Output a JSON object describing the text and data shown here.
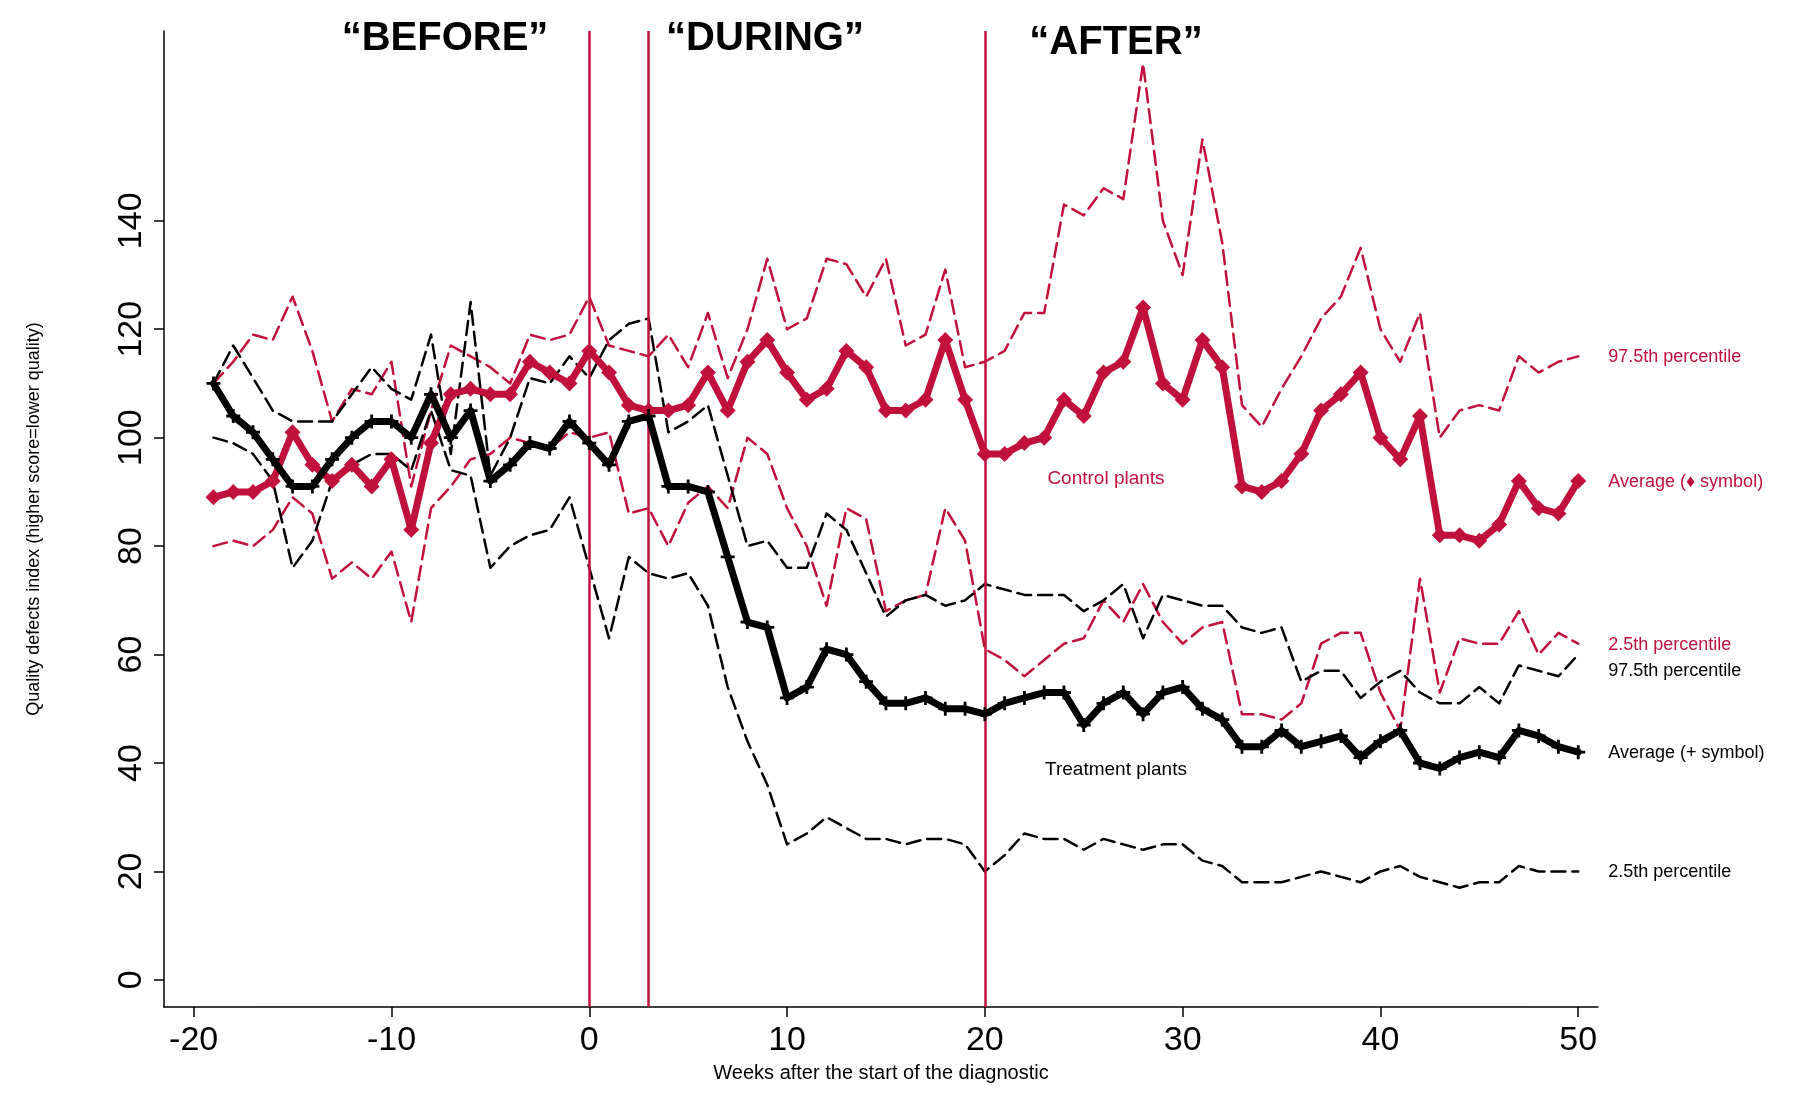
{
  "chart_data": {
    "type": "line",
    "xlabel": "Weeks after the start of the diagnostic",
    "ylabel": "Quality defects index (higher score=lower quality)",
    "xlim": [
      -21.5,
      51
    ],
    "xticks": [
      -20,
      -10,
      0,
      10,
      20,
      30,
      40,
      50
    ],
    "ylim": [
      -5,
      175
    ],
    "yticks": [
      0,
      20,
      40,
      60,
      80,
      100,
      120,
      140
    ],
    "grid": false,
    "legend": false,
    "x": [
      -19,
      -18,
      -17,
      -16,
      -15,
      -14,
      -13,
      -12,
      -11,
      -10,
      -9,
      -8,
      -7,
      -6,
      -5,
      -4,
      -3,
      -2,
      -1,
      0,
      1,
      2,
      3,
      4,
      5,
      6,
      7,
      8,
      9,
      10,
      11,
      12,
      13,
      14,
      15,
      16,
      17,
      18,
      19,
      20,
      21,
      22,
      23,
      24,
      25,
      26,
      27,
      28,
      29,
      30,
      31,
      32,
      33,
      34,
      35,
      36,
      37,
      38,
      39,
      40,
      41,
      42,
      43,
      44,
      45,
      46,
      47,
      48,
      49,
      50
    ],
    "series": [
      {
        "name": "97.5th percentile",
        "color": "#c0103c",
        "line_style": "dashed",
        "marker": "none",
        "values": [
          110,
          114,
          119,
          118,
          126,
          116,
          103,
          109,
          108,
          114,
          91,
          105,
          117,
          115,
          113,
          110,
          119,
          118,
          119,
          126,
          117,
          116,
          115,
          119,
          113,
          123,
          111,
          120,
          133,
          120,
          122,
          133,
          132,
          126,
          133,
          117,
          119,
          131,
          113,
          114,
          116,
          123,
          123,
          143,
          141,
          146,
          144,
          169,
          140,
          130,
          155,
          136,
          106,
          102,
          109,
          115,
          122,
          126,
          135,
          120,
          114,
          123,
          100,
          105,
          106,
          105,
          115,
          112,
          114,
          115
        ]
      },
      {
        "name": "Average (♦ symbol)",
        "color": "#c0103c",
        "line_style": "solid",
        "marker": "diamond",
        "values": [
          89,
          90,
          90,
          92,
          101,
          95,
          92,
          95,
          91,
          96,
          83,
          99,
          108,
          109,
          108,
          108,
          114,
          112,
          110,
          116,
          112,
          106,
          105,
          105,
          106,
          112,
          105,
          114,
          118,
          112,
          107,
          109,
          116,
          113,
          105,
          105,
          107,
          118,
          107,
          97,
          97,
          99,
          100,
          107,
          104,
          112,
          114,
          124,
          110,
          107,
          118,
          113,
          91,
          90,
          92,
          97,
          105,
          108,
          112,
          100,
          96,
          104,
          82,
          82,
          81,
          84,
          92,
          87,
          86,
          92
        ]
      },
      {
        "name": "2.5th percentile",
        "color": "#c0103c",
        "line_style": "dashed",
        "marker": "none",
        "values": [
          80,
          81,
          80,
          83,
          89,
          86,
          74,
          77,
          74,
          79,
          66,
          87,
          91,
          96,
          97,
          100,
          99,
          98,
          101,
          100,
          101,
          86,
          87,
          80,
          88,
          91,
          87,
          100,
          97,
          87,
          80,
          69,
          87,
          85,
          68,
          70,
          71,
          87,
          81,
          61,
          59,
          56,
          59,
          62,
          63,
          70,
          66,
          73,
          66,
          62,
          65,
          66,
          49,
          49,
          48,
          51,
          62,
          64,
          64,
          53,
          46,
          74,
          53,
          63,
          62,
          62,
          68,
          60,
          64,
          62
        ]
      },
      {
        "name": "97.5th percentile",
        "color": "#000000",
        "line_style": "dashed",
        "marker": "none",
        "values": [
          110,
          117,
          111,
          105,
          103,
          103,
          103,
          108,
          113,
          109,
          107,
          119,
          97,
          125,
          93,
          100,
          111,
          110,
          115,
          111,
          118,
          121,
          122,
          101,
          103,
          106,
          93,
          80,
          81,
          76,
          76,
          86,
          83,
          75,
          67,
          70,
          71,
          69,
          70,
          73,
          72,
          71,
          71,
          71,
          68,
          70,
          73,
          63,
          71,
          70,
          69,
          69,
          65,
          64,
          65,
          55,
          57,
          57,
          52,
          55,
          57,
          53,
          51,
          51,
          54,
          51,
          58,
          57,
          56,
          60
        ]
      },
      {
        "name": "Average (+ symbol)",
        "color": "#000000",
        "line_style": "solid",
        "marker": "cross",
        "values": [
          110,
          104,
          101,
          96,
          91,
          91,
          96,
          100,
          103,
          103,
          100,
          108,
          100,
          105,
          92,
          95,
          99,
          98,
          103,
          99,
          95,
          103,
          104,
          91,
          91,
          90,
          78,
          66,
          65,
          52,
          54,
          61,
          60,
          55,
          51,
          51,
          52,
          50,
          50,
          49,
          51,
          52,
          53,
          53,
          47,
          51,
          53,
          49,
          53,
          54,
          50,
          48,
          43,
          43,
          46,
          43,
          44,
          45,
          41,
          44,
          46,
          40,
          39,
          41,
          42,
          41,
          46,
          45,
          43,
          42
        ]
      },
      {
        "name": "2.5th percentile",
        "color": "#000000",
        "line_style": "dashed",
        "marker": "none",
        "values": [
          100,
          99,
          97,
          92,
          76,
          81,
          92,
          95,
          97,
          97,
          94,
          105,
          94,
          93,
          76,
          80,
          82,
          83,
          89,
          76,
          63,
          78,
          75,
          74,
          75,
          69,
          54,
          44,
          36,
          25,
          27,
          30,
          28,
          26,
          26,
          25,
          26,
          26,
          25,
          20,
          23,
          27,
          26,
          26,
          24,
          26,
          25,
          24,
          25,
          25,
          22,
          21,
          18,
          18,
          18,
          19,
          20,
          19,
          18,
          20,
          21,
          19,
          18,
          17,
          18,
          18,
          21,
          20,
          20,
          20
        ]
      }
    ],
    "ref_lines": [
      {
        "axis": "x",
        "value": 0,
        "color": "#c0103c"
      },
      {
        "axis": "x",
        "value": 3,
        "color": "#c0103c"
      },
      {
        "axis": "x",
        "value": 20,
        "color": "#c0103c"
      }
    ],
    "annotations": [
      "“BEFORE”",
      "“DURING”",
      "“AFTER”",
      "Control plants",
      "Treatment plants"
    ]
  }
}
